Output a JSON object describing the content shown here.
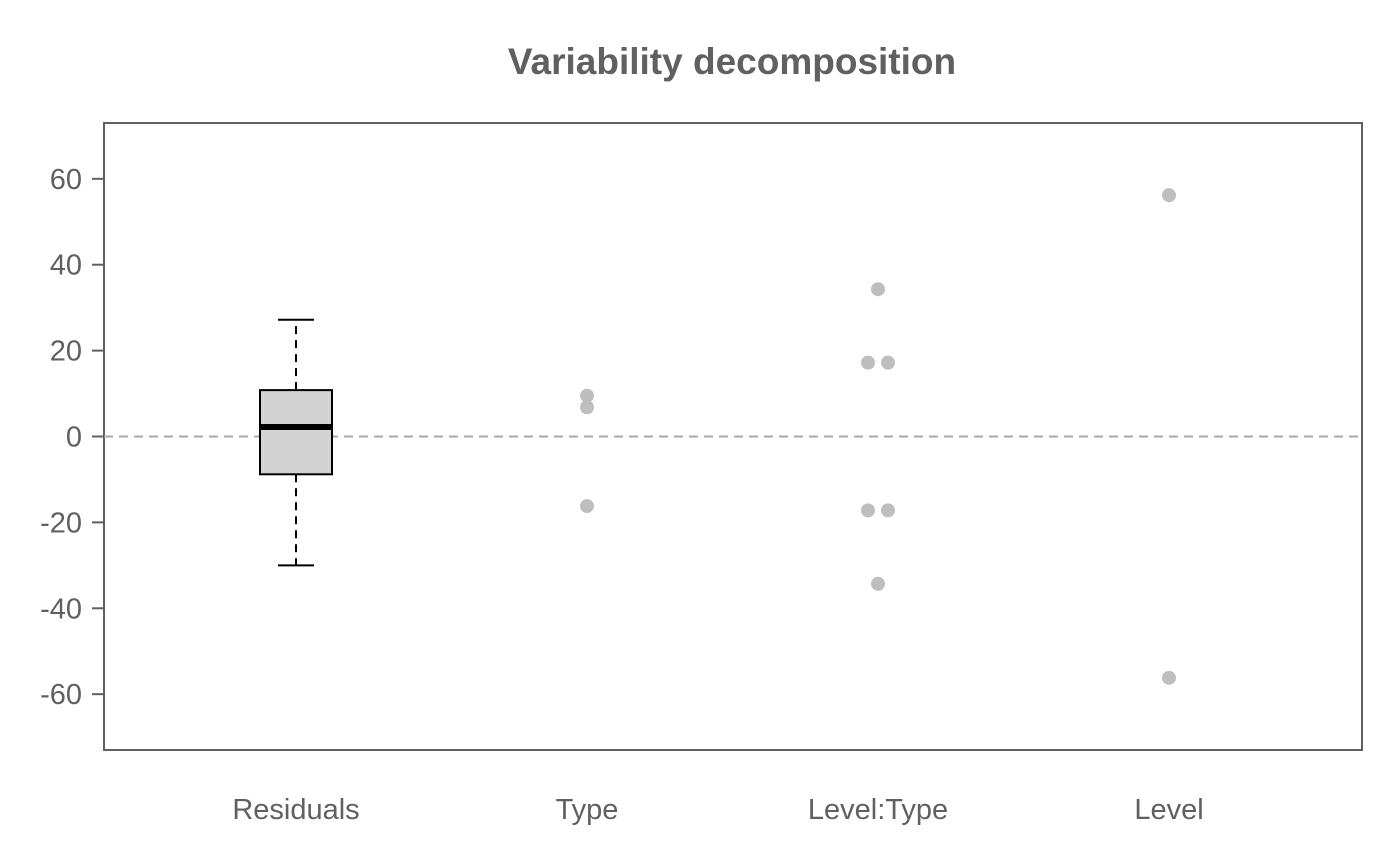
{
  "chart_data": {
    "type": "boxplot+strip",
    "title": "Variability decomposition",
    "xlabel": "",
    "ylabel": "",
    "ylim": [
      -73,
      73
    ],
    "yticks": [
      60,
      40,
      20,
      0,
      -20,
      -40,
      -60
    ],
    "ytick_labels": [
      "60",
      "40",
      "20",
      "0",
      "-20",
      "-40",
      "-60"
    ],
    "categories": [
      "Residuals",
      "Type",
      "Level:Type",
      "Level"
    ],
    "reference_line": {
      "y": 0,
      "style": "dashed"
    },
    "box": {
      "category": "Residuals",
      "whisker_low": -30,
      "q1": -8.8,
      "median": 2.2,
      "q3": 10.8,
      "whisker_high": 27.2
    },
    "points": [
      {
        "category": "Type",
        "values": [
          9.5,
          6.8,
          -16.2
        ],
        "offsets": [
          0,
          0,
          0
        ]
      },
      {
        "category": "Level:Type",
        "values": [
          34.3,
          17.2,
          17.2,
          -17.2,
          -17.2,
          -34.3
        ],
        "offsets": [
          0,
          -0.5,
          0.5,
          -0.5,
          0.5,
          0
        ]
      },
      {
        "category": "Level",
        "values": [
          56.2,
          -56.2
        ],
        "offsets": [
          0,
          0
        ]
      }
    ],
    "colors": {
      "text": "#606060",
      "frame": "#606060",
      "box_fill": "#d3d3d3",
      "box_stroke": "#000000",
      "points": "#bebebe",
      "reference": "#a9a9a9"
    },
    "grid": false,
    "legend": "none"
  }
}
